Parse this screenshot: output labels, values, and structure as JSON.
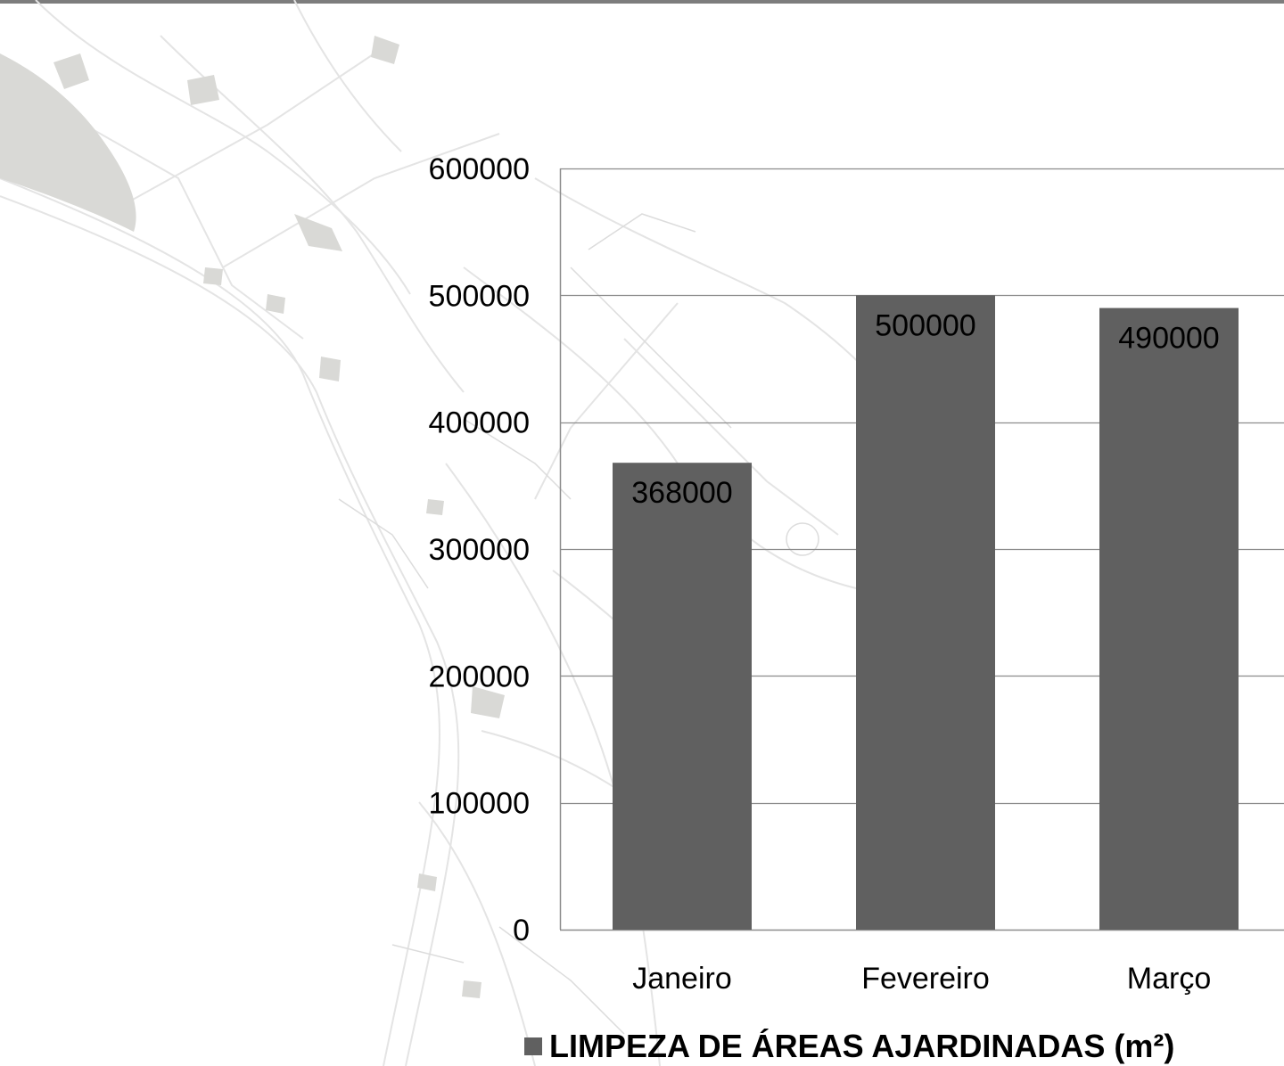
{
  "chart_data": {
    "type": "bar",
    "categories": [
      "Janeiro",
      "Fevereiro",
      "Março"
    ],
    "series": [
      {
        "name": "LIMPEZA DE ÁREAS AJARDINADAS (m²)",
        "values": [
          368000,
          500000,
          490000
        ]
      }
    ],
    "data_labels": [
      "368000",
      "500000",
      "490000"
    ],
    "y_ticks": [
      0,
      100000,
      200000,
      300000,
      400000,
      500000,
      600000
    ],
    "y_tick_labels": [
      "0",
      "100000",
      "200000",
      "300000",
      "400000",
      "500000",
      "600000"
    ],
    "ylim": [
      0,
      600000
    ],
    "grid": true,
    "legend": "bottom",
    "bar_color": "#606060",
    "gridline_color": "#8c8c8c"
  },
  "colors": {
    "top_rule": "#7d7d7d",
    "map_street": "#e6e6e6",
    "map_block": "#d9d9d6"
  }
}
